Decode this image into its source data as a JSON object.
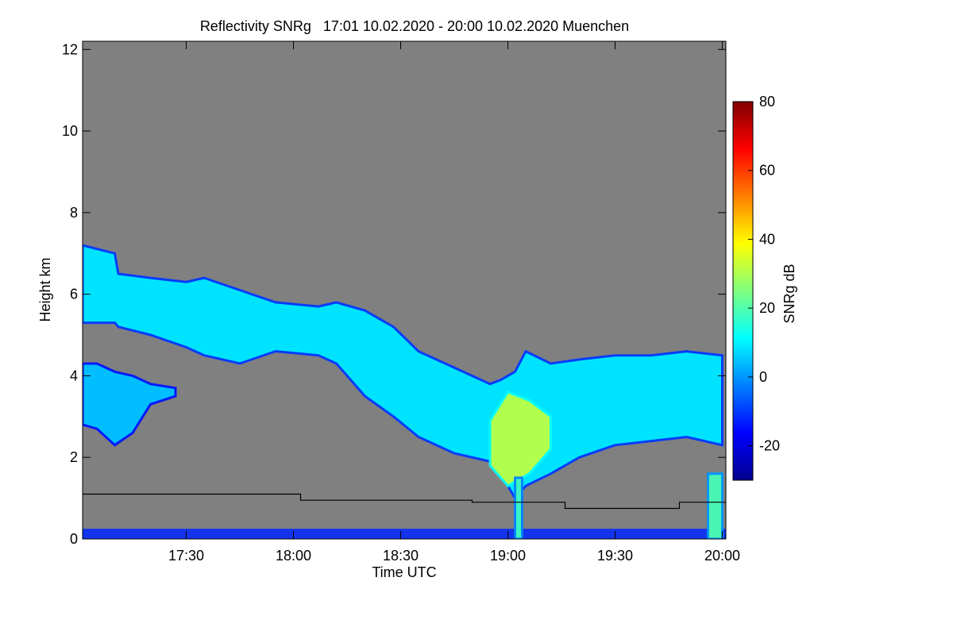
{
  "chart_data": {
    "type": "heatmap",
    "title": "Reflectivity SNRg   17:01 10.02.2020 - 20:00 10.02.2020 Muenchen",
    "xlabel": "Time UTC",
    "ylabel": "Height km",
    "x_unit": "minutes after 17:00 UTC",
    "xlim": [
      1,
      181
    ],
    "ylim": [
      0,
      12.2
    ],
    "x_ticks": [
      {
        "value": 30,
        "label": "17:30"
      },
      {
        "value": 60,
        "label": "18:00"
      },
      {
        "value": 90,
        "label": "18:30"
      },
      {
        "value": 120,
        "label": "19:00"
      },
      {
        "value": 150,
        "label": "19:30"
      },
      {
        "value": 180,
        "label": "20:00"
      }
    ],
    "y_ticks": [
      {
        "value": 0,
        "label": "0"
      },
      {
        "value": 2,
        "label": "2"
      },
      {
        "value": 4,
        "label": "4"
      },
      {
        "value": 6,
        "label": "6"
      },
      {
        "value": 8,
        "label": "8"
      },
      {
        "value": 10,
        "label": "10"
      },
      {
        "value": 12,
        "label": "12"
      }
    ],
    "colorbar": {
      "label": "SNRg dB",
      "range": [
        -30,
        80
      ],
      "ticks": [
        {
          "value": -20,
          "label": "-20"
        },
        {
          "value": 0,
          "label": "0"
        },
        {
          "value": 20,
          "label": "20"
        },
        {
          "value": 40,
          "label": "40"
        },
        {
          "value": 60,
          "label": "60"
        },
        {
          "value": 80,
          "label": "80"
        }
      ]
    },
    "cloud_layers": [
      {
        "name": "upper-cloud-layer",
        "mean_snr_db": 10,
        "points": [
          [
            1,
            5.3,
            7.2
          ],
          [
            10,
            5.3,
            7.0
          ],
          [
            11,
            5.2,
            6.5
          ],
          [
            20,
            5.0,
            6.4
          ],
          [
            30,
            4.7,
            6.3
          ],
          [
            35,
            4.5,
            6.4
          ],
          [
            45,
            4.3,
            6.1
          ],
          [
            55,
            4.6,
            5.8
          ],
          [
            67,
            4.5,
            5.7
          ],
          [
            72,
            4.3,
            5.8
          ],
          [
            80,
            3.5,
            5.6
          ],
          [
            88,
            3.0,
            5.2
          ],
          [
            95,
            2.5,
            4.6
          ],
          [
            105,
            2.1,
            4.2
          ],
          [
            115,
            1.9,
            3.8
          ],
          [
            118,
            1.6,
            3.9
          ],
          [
            122,
            1.0,
            4.1
          ],
          [
            125,
            1.3,
            4.6
          ],
          [
            132,
            1.6,
            4.3
          ],
          [
            140,
            2.0,
            4.4
          ],
          [
            150,
            2.3,
            4.5
          ],
          [
            160,
            2.4,
            4.5
          ],
          [
            170,
            2.5,
            4.6
          ],
          [
            180,
            2.3,
            4.5
          ]
        ]
      },
      {
        "name": "lower-cloud-patch",
        "mean_snr_db": 6,
        "points": [
          [
            1,
            2.8,
            4.3
          ],
          [
            5,
            2.7,
            4.3
          ],
          [
            10,
            2.3,
            4.1
          ],
          [
            15,
            2.6,
            4.0
          ],
          [
            20,
            3.3,
            3.8
          ],
          [
            27,
            3.5,
            3.7
          ]
        ]
      },
      {
        "name": "precip-core",
        "mean_snr_db": 32,
        "points": [
          [
            115,
            1.8,
            2.9
          ],
          [
            120,
            1.3,
            3.6
          ],
          [
            126,
            1.6,
            3.4
          ],
          [
            132,
            2.2,
            3.0
          ]
        ]
      },
      {
        "name": "precipitation-streak-1905",
        "mean_snr_db": 18,
        "points": [
          [
            122,
            0.0,
            1.5
          ],
          [
            124,
            0.0,
            1.5
          ]
        ]
      },
      {
        "name": "precipitation-streak-2000",
        "mean_snr_db": 20,
        "points": [
          [
            176,
            0.0,
            1.6
          ],
          [
            180,
            0.0,
            1.6
          ]
        ]
      }
    ],
    "boundary_line": [
      [
        1,
        1.1
      ],
      [
        62,
        1.1
      ],
      [
        62,
        0.95
      ],
      [
        110,
        0.95
      ],
      [
        110,
        0.9
      ],
      [
        136,
        0.9
      ],
      [
        136,
        0.75
      ],
      [
        168,
        0.75
      ],
      [
        168,
        0.9
      ],
      [
        181,
        0.9
      ]
    ],
    "ground_band_km": 0.25
  }
}
